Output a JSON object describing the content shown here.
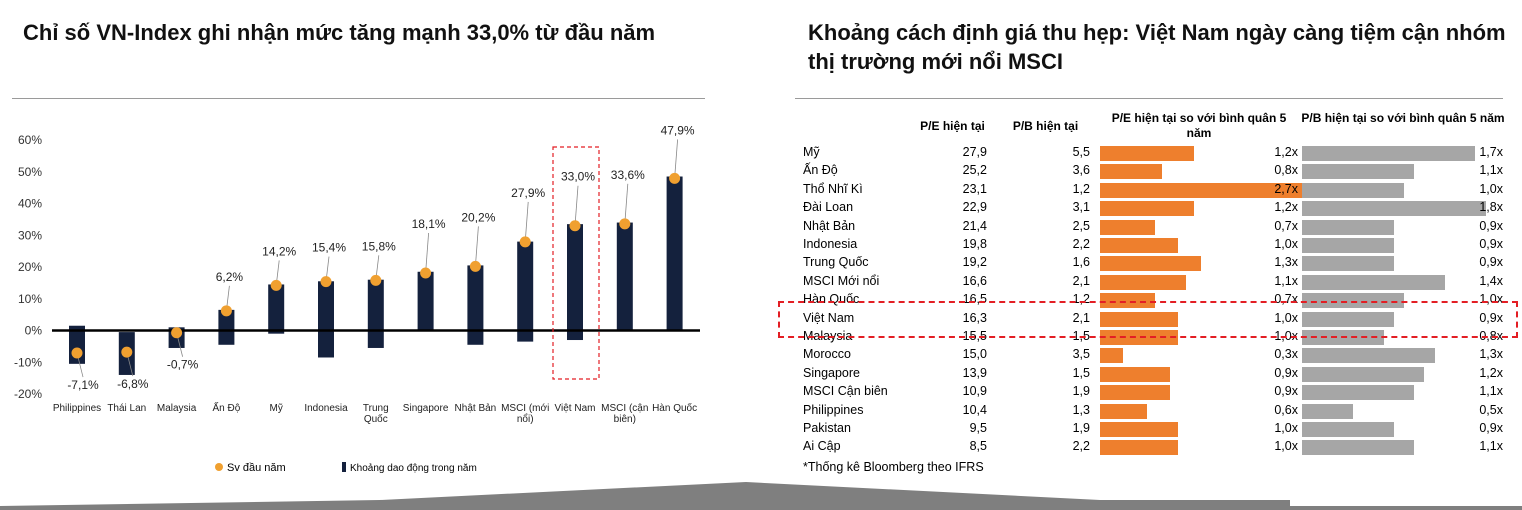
{
  "left": {
    "title": "Chỉ số VN-Index ghi nhận mức tăng mạnh 33,0% từ đầu năm",
    "legend": {
      "dot": "Sv đầu năm",
      "bar": "Khoảng dao động trong năm"
    }
  },
  "right": {
    "title": "Khoảng cách định giá thu hẹp: Việt Nam ngày càng tiệm cận nhóm thị trường mới nổi MSCI",
    "headers": {
      "pe": "P/E hiện tại",
      "pb": "P/B hiện tại",
      "pe_rel": "P/E hiện tại so với bình quân 5 năm",
      "pb_rel": "P/B hiện tại so với bình quân 5 năm"
    },
    "footnote": "*Thống kê Bloomberg theo IFRS"
  },
  "colors": {
    "bar": "#14213d",
    "dot": "#f0a030",
    "orange_bar": "#ee7f2d",
    "gray_bar": "#a6a6a6",
    "highlight": "#e31e24"
  },
  "chart_data": [
    {
      "type": "bar",
      "title": "Chỉ số VN-Index ghi nhận mức tăng mạnh 33,0% từ đầu năm",
      "categories": [
        "Philippines",
        "Thái Lan",
        "Malaysia",
        "Ấn Độ",
        "Mỹ",
        "Indonesia",
        "Trung Quốc",
        "Singapore",
        "Nhật Bản",
        "MSCI (mới nổi)",
        "Việt Nam",
        "MSCI (cận biên)",
        "Hàn Quốc"
      ],
      "series": [
        {
          "name": "Sv đầu năm",
          "kind": "dot",
          "values": [
            -7.1,
            -6.8,
            -0.7,
            6.2,
            14.2,
            15.4,
            15.8,
            18.1,
            20.2,
            27.9,
            33.0,
            33.6,
            47.9
          ]
        },
        {
          "name": "Khoảng dao động trong năm",
          "kind": "range",
          "low": [
            -10.5,
            -14.0,
            -5.5,
            -4.5,
            -1.0,
            -8.5,
            -5.5,
            0.0,
            -4.5,
            -3.5,
            -3.0,
            0.0,
            0.0
          ],
          "high": [
            1.5,
            -0.5,
            1.0,
            6.5,
            14.5,
            15.5,
            16.0,
            18.5,
            20.5,
            28.0,
            33.5,
            34.0,
            48.5
          ]
        }
      ],
      "data_labels": [
        "-7,1%",
        "-6,8%",
        "-0,7%",
        "6,2%",
        "14,2%",
        "15,4%",
        "15,8%",
        "18,1%",
        "20,2%",
        "27,9%",
        "33,0%",
        "33,6%",
        "47,9%"
      ],
      "y_ticks": [
        "60%",
        "50%",
        "40%",
        "30%",
        "20%",
        "10%",
        "0%",
        "-10%",
        "-20%"
      ],
      "ylim": [
        -20,
        60
      ],
      "highlight_category": "Việt Nam",
      "legend_position": "bottom"
    },
    {
      "type": "table",
      "title": "Khoảng cách định giá thu hẹp: Việt Nam ngày càng tiệm cận nhóm thị trường mới nổi MSCI",
      "columns": [
        "P/E hiện tại",
        "P/B hiện tại",
        "P/E hiện tại so với bình quân 5 năm",
        "P/B hiện tại so với bình quân 5 năm"
      ],
      "highlight_row": "Việt Nam",
      "rows": [
        {
          "name": "Mỹ",
          "pe": "27,9",
          "pb": "5,5",
          "pe_rel": 1.2,
          "pe_rel_label": "1,2x",
          "pb_rel": 1.7,
          "pb_rel_label": "1,7x"
        },
        {
          "name": "Ấn Độ",
          "pe": "25,2",
          "pb": "3,6",
          "pe_rel": 0.8,
          "pe_rel_label": "0,8x",
          "pb_rel": 1.1,
          "pb_rel_label": "1,1x"
        },
        {
          "name": "Thổ Nhĩ Kì",
          "pe": "23,1",
          "pb": "1,2",
          "pe_rel": 2.7,
          "pe_rel_label": "2,7x",
          "pb_rel": 1.0,
          "pb_rel_label": "1,0x"
        },
        {
          "name": "Đài Loan",
          "pe": "22,9",
          "pb": "3,1",
          "pe_rel": 1.2,
          "pe_rel_label": "1,2x",
          "pb_rel": 1.8,
          "pb_rel_label": "1,8x"
        },
        {
          "name": "Nhật Bản",
          "pe": "21,4",
          "pb": "2,5",
          "pe_rel": 0.7,
          "pe_rel_label": "0,7x",
          "pb_rel": 0.9,
          "pb_rel_label": "0,9x"
        },
        {
          "name": "Indonesia",
          "pe": "19,8",
          "pb": "2,2",
          "pe_rel": 1.0,
          "pe_rel_label": "1,0x",
          "pb_rel": 0.9,
          "pb_rel_label": "0,9x"
        },
        {
          "name": "Trung Quốc",
          "pe": "19,2",
          "pb": "1,6",
          "pe_rel": 1.3,
          "pe_rel_label": "1,3x",
          "pb_rel": 0.9,
          "pb_rel_label": "0,9x"
        },
        {
          "name": "MSCI Mới nổi",
          "pe": "16,6",
          "pb": "2,1",
          "pe_rel": 1.1,
          "pe_rel_label": "1,1x",
          "pb_rel": 1.4,
          "pb_rel_label": "1,4x"
        },
        {
          "name": "Hàn Quốc",
          "pe": "16,5",
          "pb": "1,2",
          "pe_rel": 0.7,
          "pe_rel_label": "0,7x",
          "pb_rel": 1.0,
          "pb_rel_label": "1,0x"
        },
        {
          "name": "Việt Nam",
          "pe": "16,3",
          "pb": "2,1",
          "pe_rel": 1.0,
          "pe_rel_label": "1,0x",
          "pb_rel": 0.9,
          "pb_rel_label": "0,9x"
        },
        {
          "name": "Malaysia",
          "pe": "15,5",
          "pb": "1,5",
          "pe_rel": 1.0,
          "pe_rel_label": "1,0x",
          "pb_rel": 0.8,
          "pb_rel_label": "0,8x"
        },
        {
          "name": "Morocco",
          "pe": "15,0",
          "pb": "3,5",
          "pe_rel": 0.3,
          "pe_rel_label": "0,3x",
          "pb_rel": 1.3,
          "pb_rel_label": "1,3x"
        },
        {
          "name": "Singapore",
          "pe": "13,9",
          "pb": "1,5",
          "pe_rel": 0.9,
          "pe_rel_label": "0,9x",
          "pb_rel": 1.2,
          "pb_rel_label": "1,2x"
        },
        {
          "name": "MSCI Cận biên",
          "pe": "10,9",
          "pb": "1,9",
          "pe_rel": 0.9,
          "pe_rel_label": "0,9x",
          "pb_rel": 1.1,
          "pb_rel_label": "1,1x"
        },
        {
          "name": "Philippines",
          "pe": "10,4",
          "pb": "1,3",
          "pe_rel": 0.6,
          "pe_rel_label": "0,6x",
          "pb_rel": 0.5,
          "pb_rel_label": "0,5x"
        },
        {
          "name": "Pakistan",
          "pe": "9,5",
          "pb": "1,9",
          "pe_rel": 1.0,
          "pe_rel_label": "1,0x",
          "pb_rel": 0.9,
          "pb_rel_label": "0,9x"
        },
        {
          "name": "Ai Cập",
          "pe": "8,5",
          "pb": "2,2",
          "pe_rel": 1.0,
          "pe_rel_label": "1,0x",
          "pb_rel": 1.1,
          "pb_rel_label": "1,1x"
        }
      ]
    }
  ]
}
